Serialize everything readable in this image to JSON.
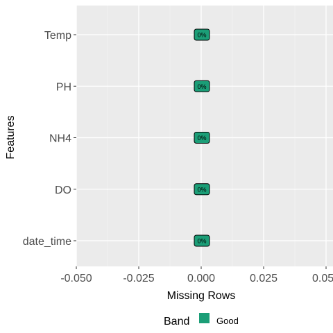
{
  "chart_data": {
    "type": "bar",
    "orientation": "horizontal",
    "title": "",
    "xlabel": "Missing Rows",
    "ylabel": "Features",
    "xlim": [
      -0.05,
      0.05
    ],
    "x_ticks": [
      "-0.050",
      "-0.025",
      "0.000",
      "0.025",
      "0.050"
    ],
    "x_tick_values": [
      -0.05,
      -0.025,
      0,
      0.025,
      0.05
    ],
    "categories": [
      "Temp",
      "PH",
      "NH4",
      "DO",
      "date_time"
    ],
    "values": [
      0,
      0,
      0,
      0,
      0
    ],
    "labels": [
      "0%",
      "0%",
      "0%",
      "0%",
      "0%"
    ],
    "bands": [
      "Good",
      "Good",
      "Good",
      "Good",
      "Good"
    ],
    "grid": true,
    "panel_background": "#ebebeb",
    "legend": {
      "position": "bottom",
      "title": "Band",
      "items": [
        {
          "name": "Good",
          "color": "#1b9e77"
        }
      ]
    }
  }
}
